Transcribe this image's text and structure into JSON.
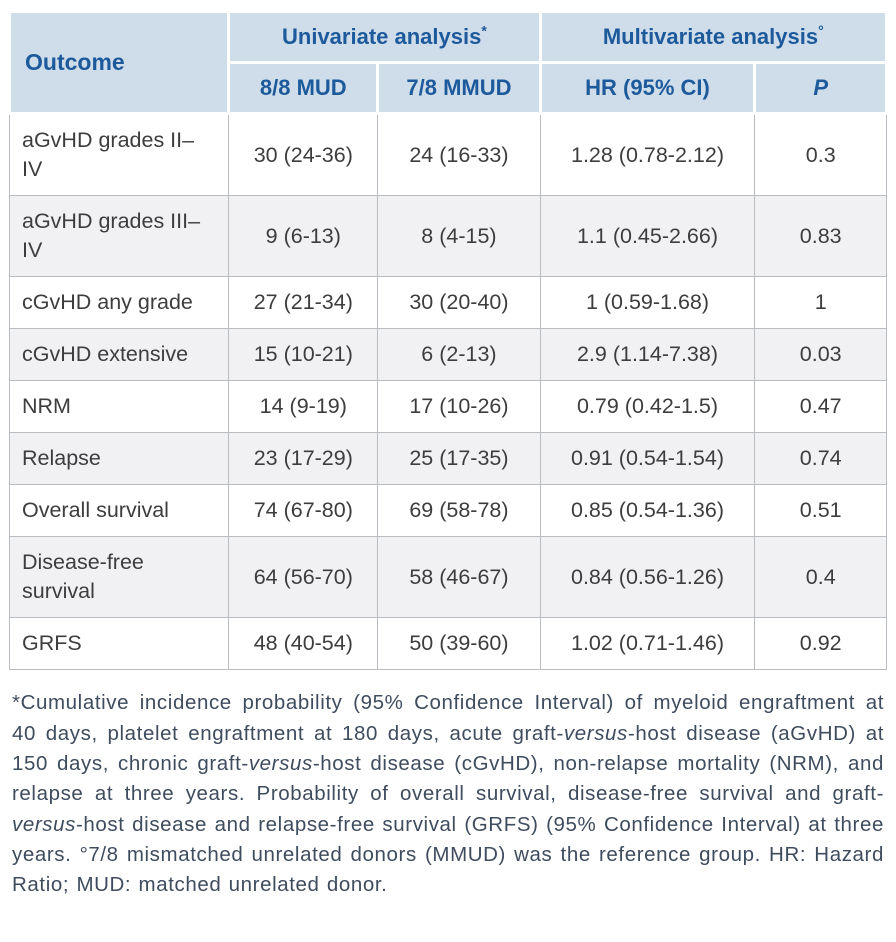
{
  "colors": {
    "header_bg": "#cfdce9",
    "header_text": "#1d5a9c",
    "body_text": "#3d3d3d",
    "row_alt_bg": "#f1f1f4",
    "border": "#b9bcc0",
    "footnote_text": "#3e4c5e"
  },
  "table": {
    "header": {
      "outcome": "Outcome",
      "univariate": "Univariate analysis",
      "univariate_sup": "*",
      "multivariate": "Multivariate analysis",
      "multivariate_sup": "°",
      "col_mud": "8/8 MUD",
      "col_mmud": "7/8 MMUD",
      "col_hr": "HR (95% CI)",
      "col_p": "P"
    },
    "rows": [
      {
        "outcome": "aGvHD grades II–IV",
        "mud": "30 (24-36)",
        "mmud": "24 (16-33)",
        "hr": "1.28 (0.78-2.12)",
        "p": "0.3"
      },
      {
        "outcome": "aGvHD grades III–IV",
        "mud": "9 (6-13)",
        "mmud": "8 (4-15)",
        "hr": "1.1 (0.45-2.66)",
        "p": "0.83"
      },
      {
        "outcome": "cGvHD any grade",
        "mud": "27 (21-34)",
        "mmud": "30 (20-40)",
        "hr": "1 (0.59-1.68)",
        "p": "1"
      },
      {
        "outcome": "cGvHD extensive",
        "mud": "15 (10-21)",
        "mmud": "6 (2-13)",
        "hr": "2.9 (1.14-7.38)",
        "p": "0.03"
      },
      {
        "outcome": "NRM",
        "mud": "14 (9-19)",
        "mmud": "17 (10-26)",
        "hr": "0.79 (0.42-1.5)",
        "p": "0.47"
      },
      {
        "outcome": "Relapse",
        "mud": "23 (17-29)",
        "mmud": "25 (17-35)",
        "hr": "0.91 (0.54-1.54)",
        "p": "0.74"
      },
      {
        "outcome": "Overall survival",
        "mud": "74 (67-80)",
        "mmud": "69 (58-78)",
        "hr": "0.85 (0.54-1.36)",
        "p": "0.51"
      },
      {
        "outcome": "Disease-free survival",
        "mud": "64 (56-70)",
        "mmud": "58 (46-67)",
        "hr": "0.84 (0.56-1.26)",
        "p": "0.4"
      },
      {
        "outcome": "GRFS",
        "mud": "48 (40-54)",
        "mmud": "50 (39-60)",
        "hr": "1.02 (0.71-1.46)",
        "p": "0.92"
      }
    ]
  },
  "footnote": {
    "parts": [
      {
        "text": "*Cumulative incidence probability (95% Confidence Interval) of myeloid engraftment at 40 days, platelet engraftment at 180 days, acute graft-"
      },
      {
        "text": "versus"
      },
      {
        "text": "-host disease (aGvHD) at 150 days, chronic graft-"
      },
      {
        "text": "versus"
      },
      {
        "text": "-host disease (cGvHD), non-relapse mortality (NRM), and relapse at three years. Probability of overall survival, disease-free survival and graft-"
      },
      {
        "text": "versus"
      },
      {
        "text": "-host disease and relapse-free survival (GRFS) (95% Confidence Interval) at three years. °7/8 mismatched unrelated donors (MMUD) was the reference group. HR: Hazard Ratio; MUD: matched unrelated donor."
      }
    ]
  }
}
